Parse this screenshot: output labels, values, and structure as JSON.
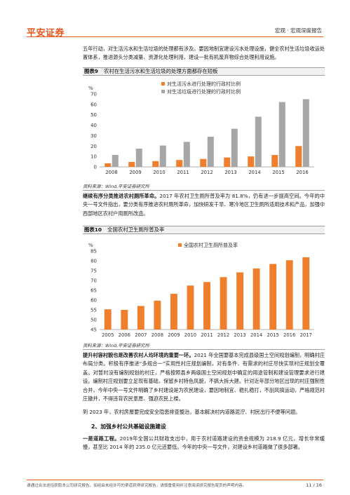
{
  "header": {
    "logo": "平安证券",
    "report_type": "宏观 · 宏观深度报告"
  },
  "intro_paragraph": "五年行动，对生活污水和生活垃圾的处理都有涉及。要因地制宜建设污水处理设施，健全农村生活垃圾收运处置体系，推进源头分类减量、资源化处理利用，建设一批有机废弃物综合处理利用设施。",
  "figure9": {
    "number": "图表9",
    "title": "农村在生活污水和生活垃圾的处理方面都存在短板",
    "source": "资料来源：Wind,平安证券研究所"
  },
  "paragraph_toilet": {
    "lead": "继续有序分类推进农村厕所革命。",
    "text": "2017 年农村卫生厕所普及率为 81.8%，仍有进一步提高空间。今年的中央一号文件指出，要分类有序推进农村厕所革命，加快研发干旱、寒冷地区卫生厕所适用技术和产品，加强中西部地区农村户用厕所改造。"
  },
  "figure10": {
    "number": "图表10",
    "title": "全国农村卫生厕所普及率",
    "source": "资料来源：Wind,平安证券研究所"
  },
  "paragraph_planning": {
    "lead": "提升村容村貌也是改善农村人均环境的重要一环。",
    "text": "2021 年全国要基本完成县级国土空间规划编制，明确村庄布局分类。积极有序推进“多规合一”实用性村庄规划编制，对有条件、有需求的村庄尽快实现村庄规划全覆盖。对暂时没有编制规划的村庄，严格按照县乡两级国土空间规划中确定的用途管制和建设管理要求进行建设。编制村庄规划要立足现有基础，保留乡村特色风貌，不搞大拆大建。针对近年部分地区出现的村庄强制性合并，今年中央一号文件明确了乡村建设是为农民建设，要因地制宜、稳扎稳打，不刮风搞运动，严格规范村庄撤并，不得违背农民意愿、强迫农民上楼。"
  },
  "paragraph_2023": "到 2023 年，农村房屋要完成安全隐患排查整治，基本解决村内道路泥泞、村民出行不便等问题。",
  "section2": "2、加强乡村公共基础设施建设",
  "paragraph_roads": {
    "lead": "一是道路工程。",
    "text": "2019年全国公共财政支出中，用于农村道路建设的资金规模为 218.9 亿元，增长非常缓慢，甚至比 2014 年的 235.0 亿元还要低。今年的中央一号文件，对建设乡村道路做了很多部署。"
  },
  "footer": {
    "disclaimer": "请通过合法途径获取本公司研究报告，如经由未经许可的渠道获得研究报告，请慎重使用并注意阅读研究报告尾页的声明内容。",
    "page": "11 / 16"
  },
  "colors": {
    "brand": "#e8561d",
    "bar_light": "#a6a6a6",
    "bar_orange": "#f07f2d"
  },
  "chart_data": [
    {
      "type": "bar",
      "title": "",
      "ylabel": "%",
      "ylim": [
        0,
        70
      ],
      "yticks": [
        0,
        10,
        20,
        30,
        40,
        50,
        60,
        70
      ],
      "categories": [
        "2008",
        "2009",
        "2010",
        "2011",
        "2012",
        "2013",
        "2014",
        "2015",
        "2016"
      ],
      "legend_position": "top-left",
      "series": [
        {
          "name": "对生活污水进行处理的行政村比例",
          "color": "#f07f2d",
          "values": [
            3.4,
            4.7,
            5.5,
            6.6,
            7.6,
            9.0,
            10.0,
            11.4,
            20.0
          ]
        },
        {
          "name": "对生活垃圾进行处理的行政村比例",
          "color": "#a6a6a6",
          "values": [
            11.5,
            17.5,
            20.5,
            24.0,
            29.0,
            36.6,
            48.2,
            62.2,
            65.0
          ]
        }
      ]
    },
    {
      "type": "bar",
      "title": "",
      "ylabel": "%",
      "ylim": [
        45,
        85
      ],
      "yticks": [
        45,
        50,
        55,
        60,
        65,
        70,
        75,
        80,
        85
      ],
      "categories": [
        "2005",
        "2006",
        "2007",
        "2008",
        "2009",
        "2010",
        "2011",
        "2012",
        "2013",
        "2014",
        "2015",
        "2016",
        "2017"
      ],
      "legend_position": "top-left",
      "series": [
        {
          "name": "全国农村卫生厕所普及率",
          "color": "#f07f2d",
          "values": [
            55.3,
            55.0,
            57.0,
            59.7,
            63.2,
            67.4,
            69.2,
            71.7,
            74.1,
            76.1,
            78.4,
            80.3,
            81.8
          ]
        }
      ]
    }
  ]
}
